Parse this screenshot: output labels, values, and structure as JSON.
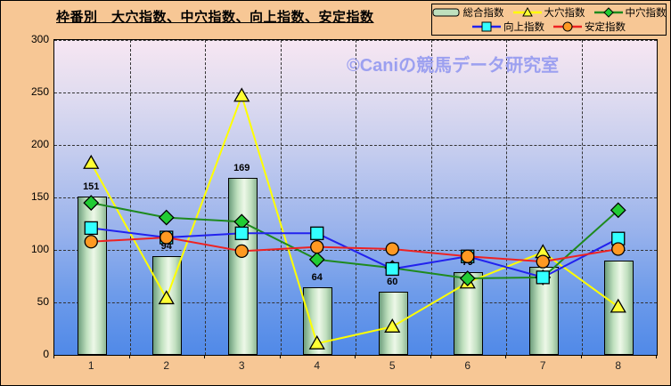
{
  "title": "枠番別　大穴指数、中穴指数、向上指数、安定指数",
  "watermark": "©Caniの競馬データ研究室",
  "legend": {
    "items": [
      {
        "label": "総合指数",
        "marker": "bar",
        "line_color": null,
        "marker_color": "#BFE0BE"
      },
      {
        "label": "大穴指数",
        "marker": "triangle",
        "line_color": "#FFFF00",
        "marker_color": "#FFFF33"
      },
      {
        "label": "中穴指数",
        "marker": "diamond",
        "line_color": "#1E8A1E",
        "marker_color": "#21CC33"
      },
      {
        "label": "向上指数",
        "marker": "square",
        "line_color": "#2222EE",
        "marker_color": "#33FFFF"
      },
      {
        "label": "安定指数",
        "marker": "circle",
        "line_color": "#EE2222",
        "marker_color": "#FF9922"
      }
    ]
  },
  "chart_data": {
    "type": "bar+line combo",
    "categories": [
      "1",
      "2",
      "3",
      "4",
      "5",
      "6",
      "7",
      "8"
    ],
    "xlabel": "",
    "ylabel": "",
    "ylim": [
      0,
      300
    ],
    "ytick_step": 50,
    "yticks": [
      0,
      50,
      100,
      150,
      200,
      250,
      300
    ],
    "grid": "dashed horizontal and vertical",
    "legend_position": "top-right",
    "series": [
      {
        "name": "総合指数",
        "type": "bar",
        "values": [
          151,
          94,
          169,
          64,
          60,
          79,
          84,
          90
        ],
        "labels_shown": [
          151,
          94,
          169,
          64,
          60,
          79,
          84,
          90
        ]
      },
      {
        "name": "大穴指数",
        "type": "line",
        "marker": "triangle",
        "line_color": "#FFFF00",
        "marker_color": "#FFFF33",
        "values": [
          182,
          53,
          246,
          10,
          26,
          68,
          97,
          45
        ]
      },
      {
        "name": "中穴指数",
        "type": "line",
        "marker": "diamond",
        "line_color": "#1E8A1E",
        "marker_color": "#21CC33",
        "values": [
          144,
          130,
          126,
          90,
          82,
          72,
          73,
          137
        ]
      },
      {
        "name": "向上指数",
        "type": "line",
        "marker": "square",
        "line_color": "#2222EE",
        "marker_color": "#33FFFF",
        "values": [
          120,
          111,
          115,
          115,
          81,
          93,
          73,
          110
        ]
      },
      {
        "name": "安定指数",
        "type": "line",
        "marker": "circle",
        "line_color": "#EE2222",
        "marker_color": "#FF9922",
        "values": [
          107,
          111,
          98,
          102,
          100,
          93,
          88,
          100
        ]
      }
    ]
  }
}
